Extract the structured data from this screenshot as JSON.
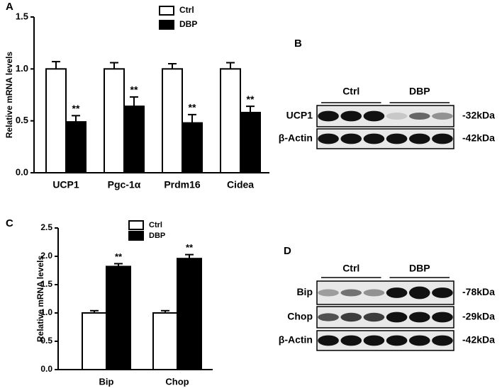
{
  "chart_data": [
    {
      "type": "bar",
      "panel": "A",
      "ylabel": "Relative mRNA levels",
      "categories": [
        "UCP1",
        "Pgc-1α",
        "Prdm16",
        "Cidea"
      ],
      "series": [
        {
          "name": "Ctrl",
          "color": "#ffffff",
          "values": [
            1.0,
            1.0,
            1.0,
            1.0
          ],
          "errors": [
            0.07,
            0.06,
            0.05,
            0.06
          ]
        },
        {
          "name": "DBP",
          "color": "#000000",
          "values": [
            0.49,
            0.64,
            0.48,
            0.58
          ],
          "errors": [
            0.06,
            0.09,
            0.08,
            0.06
          ],
          "annotations": [
            "**",
            "**",
            "**",
            "**"
          ]
        }
      ],
      "ylim": [
        0,
        1.5
      ],
      "yticks": [
        {
          "value": 0,
          "label": "0.0"
        },
        0.5,
        {
          "value": 1,
          "label": "1.0"
        },
        1.5
      ],
      "grid": false
    },
    {
      "type": "bar",
      "panel": "C",
      "ylabel": "Relative mRNA levels",
      "categories": [
        "Bip",
        "Chop"
      ],
      "series": [
        {
          "name": "Ctrl",
          "color": "#ffffff",
          "values": [
            1.0,
            1.0
          ],
          "errors": [
            0.04,
            0.04
          ]
        },
        {
          "name": "DBP",
          "color": "#000000",
          "values": [
            1.82,
            1.96
          ],
          "errors": [
            0.05,
            0.07
          ],
          "annotations": [
            "**",
            "**"
          ]
        }
      ],
      "ylim": [
        0,
        2.5
      ],
      "yticks": [
        {
          "value": 0,
          "label": "0.0"
        },
        0.5,
        {
          "value": 1,
          "label": "1.0"
        },
        1.5,
        {
          "value": 2,
          "label": "2.0"
        },
        2.5
      ],
      "grid": false
    }
  ],
  "blots": [
    {
      "panel": "B",
      "groups": [
        "Ctrl",
        "DBP"
      ],
      "rows": [
        {
          "label": "UCP1",
          "size": "-32kDa"
        },
        {
          "label": "β-Actin",
          "size": "-42kDa"
        }
      ]
    },
    {
      "panel": "D",
      "groups": [
        "Ctrl",
        "DBP"
      ],
      "rows": [
        {
          "label": "Bip",
          "size": "-78kDa"
        },
        {
          "label": "Chop",
          "size": "-29kDa"
        },
        {
          "label": "β-Actin",
          "size": "-42kDa"
        }
      ]
    }
  ]
}
